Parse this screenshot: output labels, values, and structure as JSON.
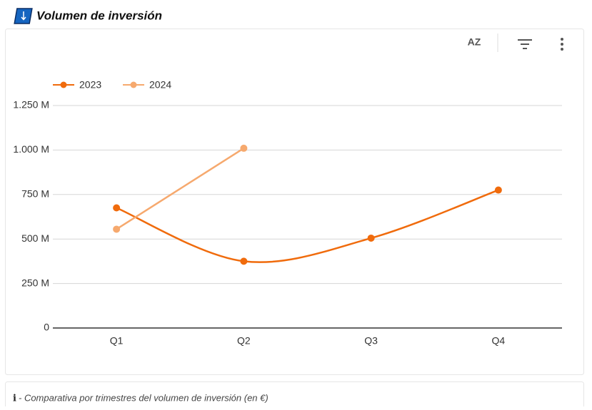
{
  "chart_data": {
    "type": "line",
    "title": "Volumen de inversión",
    "toolbar": {
      "sort": "AZ"
    },
    "categories": [
      "Q1",
      "Q2",
      "Q3",
      "Q4"
    ],
    "series": [
      {
        "name": "2023",
        "color": "#f06b0c",
        "values": [
          675,
          375,
          505,
          775
        ]
      },
      {
        "name": "2024",
        "color": "#f6a96e",
        "values": [
          555,
          1010,
          null,
          null
        ]
      }
    ],
    "ylim": [
      0,
      1250
    ],
    "yticks": [
      0,
      {
        "value": 250,
        "label": "250 M"
      },
      {
        "value": 500,
        "label": "500 M"
      },
      {
        "value": 750,
        "label": "750 M"
      },
      {
        "value": 1000,
        "label": "1.000 M"
      },
      {
        "value": 1250,
        "label": "1.250 M"
      }
    ],
    "grid": true,
    "smooth": true,
    "legend": "top-left",
    "note": "- Comparativa por trimestres del volumen de inversión (en €)"
  }
}
